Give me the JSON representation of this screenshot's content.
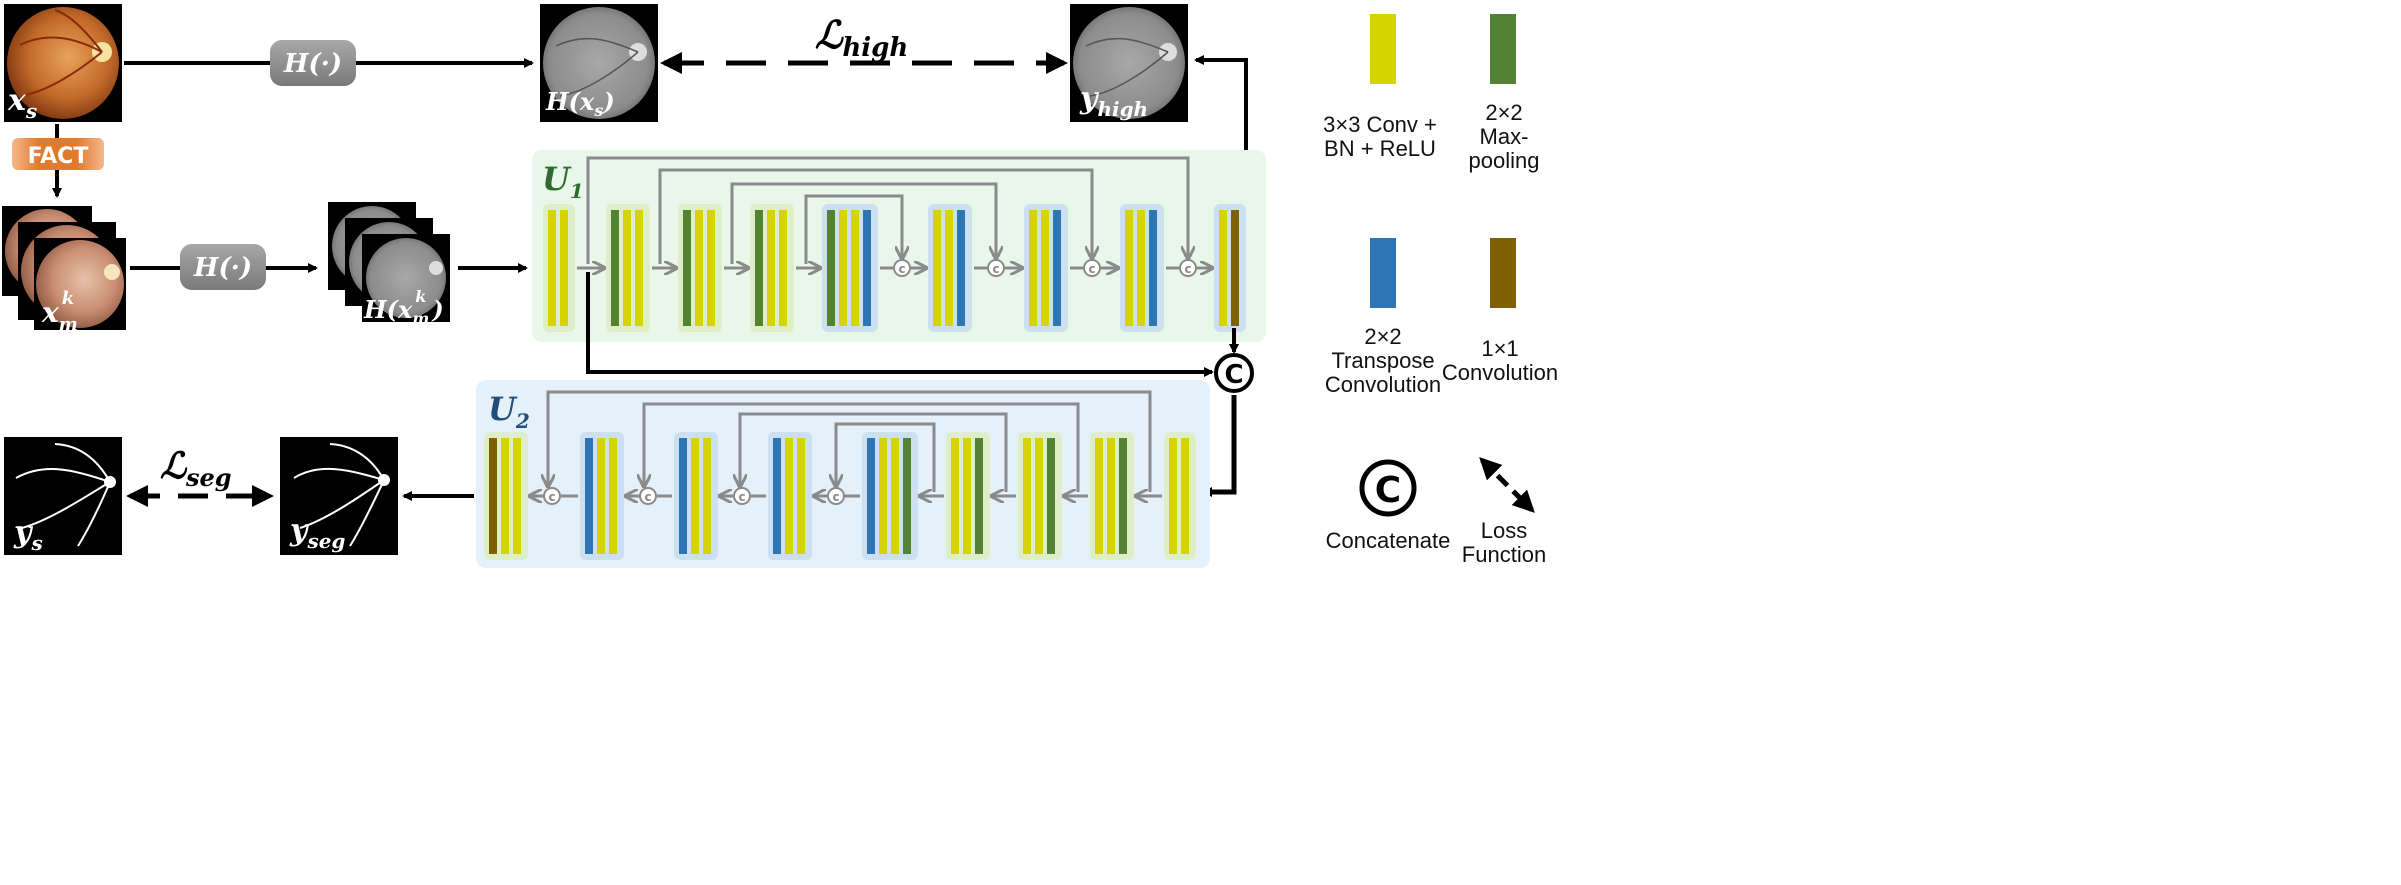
{
  "colors": {
    "conv": "#d6d400",
    "maxpool": "#548235",
    "transpose": "#2e75b6",
    "conv1x1": "#7f6000",
    "u1_bg": "#e9f7ea",
    "u2_bg": "#e4f0fa",
    "block_green": "#ddeec8",
    "block_blue": "#cde0f2",
    "fact": "#e07a2e",
    "h_box": "#8e8e8e",
    "arrow_dark": "#000000",
    "arrow_gray": "#8a8a8a"
  },
  "labels": {
    "x_s": "x_s",
    "x_m": "x_m^k",
    "fact": "FACT",
    "h_op_top": "H(·)",
    "h_op_mid": "H(·)",
    "h_xs": "H(x_s)",
    "h_xm": "H(x_m^k)",
    "y_high": "y_high",
    "l_high": "ℒ_high",
    "u1": "U_1",
    "u2": "U_2",
    "y_s": "y_s",
    "y_seg": "y_seg",
    "l_seg": "ℒ_seg",
    "concat_symbol": "C",
    "small_concat": "c"
  },
  "legend": {
    "conv": {
      "line1": "3×3 Conv +",
      "line2": "BN + ReLU",
      "icon": "yellow-bar"
    },
    "maxpool": {
      "line1": "2×2",
      "line2": "Max-",
      "line3": "pooling",
      "icon": "green-bar"
    },
    "transpose": {
      "line1": "2×2",
      "line2": "Transpose",
      "line3": "Convolution",
      "icon": "blue-bar"
    },
    "conv1x1": {
      "line1": "1×1",
      "line2": "Convolution",
      "icon": "brown-bar"
    },
    "concatenate": {
      "label": "Concatenate",
      "icon": "circled-c-icon"
    },
    "loss": {
      "line1": "Loss",
      "line2": "Function",
      "icon": "double-arrow-icon"
    }
  }
}
